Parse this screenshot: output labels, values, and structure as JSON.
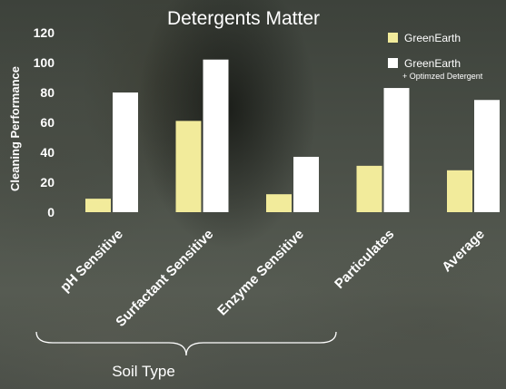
{
  "chart_data": {
    "type": "bar",
    "title": "Detergents Matter",
    "ylabel": "Cleaning Performance",
    "xlabel": "Soil Type",
    "ylim": [
      0,
      120
    ],
    "yticks": [
      0,
      20,
      40,
      60,
      80,
      100,
      120
    ],
    "categories": [
      "pH Sensitive",
      "Surfactant Sensitive",
      "Enzyme Sensitive",
      "Particulates",
      "Average"
    ],
    "series": [
      {
        "name": "GreenEarth",
        "color": "#f2eb9b",
        "values": [
          9,
          61,
          12,
          31,
          28
        ]
      },
      {
        "name": "GreenEarth",
        "name_sub": "+ Optimzed Detergent",
        "color": "#ffffff",
        "values": [
          80,
          102,
          37,
          83,
          75
        ]
      }
    ],
    "grid": false,
    "legend_position": "top-right"
  }
}
